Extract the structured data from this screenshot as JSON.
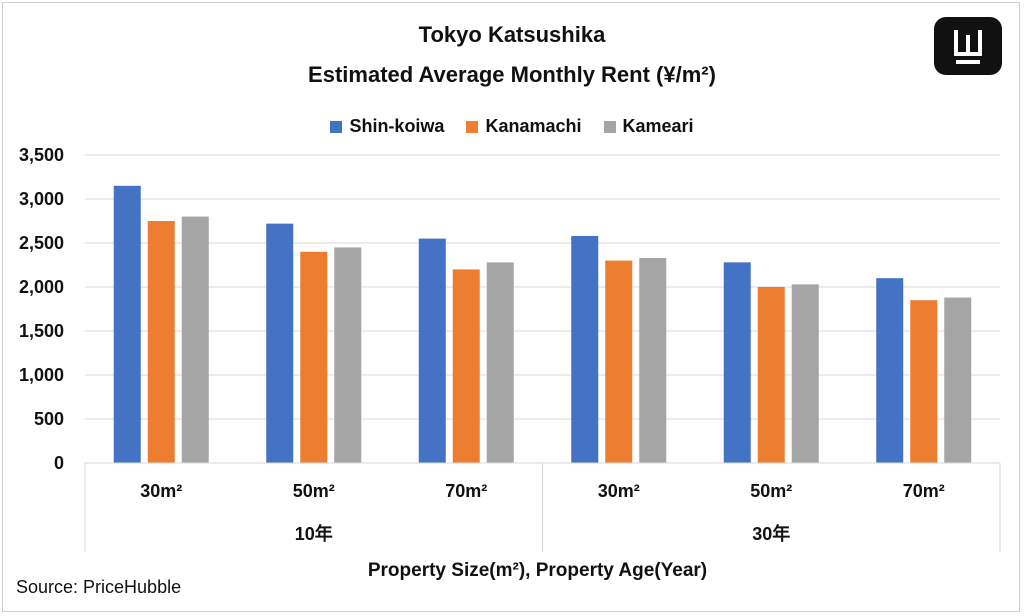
{
  "logo": {
    "icon": "w-logo-icon",
    "bg": "#111111",
    "fg": "#ffffff"
  },
  "chart_data": {
    "type": "bar",
    "title": "Tokyo Katsushika",
    "subtitle": "Estimated Average Monthly Rent (¥/m²)",
    "categories": [
      "30m²",
      "50m²",
      "70m²",
      "30m²",
      "50m²",
      "70m²"
    ],
    "groups": [
      {
        "label": "10年",
        "categories": [
          "30m²",
          "50m²",
          "70m²"
        ]
      },
      {
        "label": "30年",
        "categories": [
          "30m²",
          "50m²",
          "70m²"
        ]
      }
    ],
    "series": [
      {
        "name": "Shin-koiwa",
        "color": "#4472C4",
        "values": [
          3150,
          2720,
          2550,
          2580,
          2280,
          2100
        ]
      },
      {
        "name": "Kanamachi",
        "color": "#ED7D31",
        "values": [
          2750,
          2400,
          2200,
          2300,
          2000,
          1850
        ]
      },
      {
        "name": "Kameari",
        "color": "#A5A5A5",
        "values": [
          2800,
          2450,
          2280,
          2330,
          2030,
          1880
        ]
      }
    ],
    "xlabel": "Property Size(m²), Property Age(Year)",
    "ylabel": "",
    "ylim": [
      0,
      3500
    ],
    "yticks": [
      "0",
      "500",
      "1,000",
      "1,500",
      "2,000",
      "2,500",
      "3,000",
      "3,500"
    ],
    "grid": true,
    "legend": "top"
  },
  "source": "Source: PriceHubble"
}
